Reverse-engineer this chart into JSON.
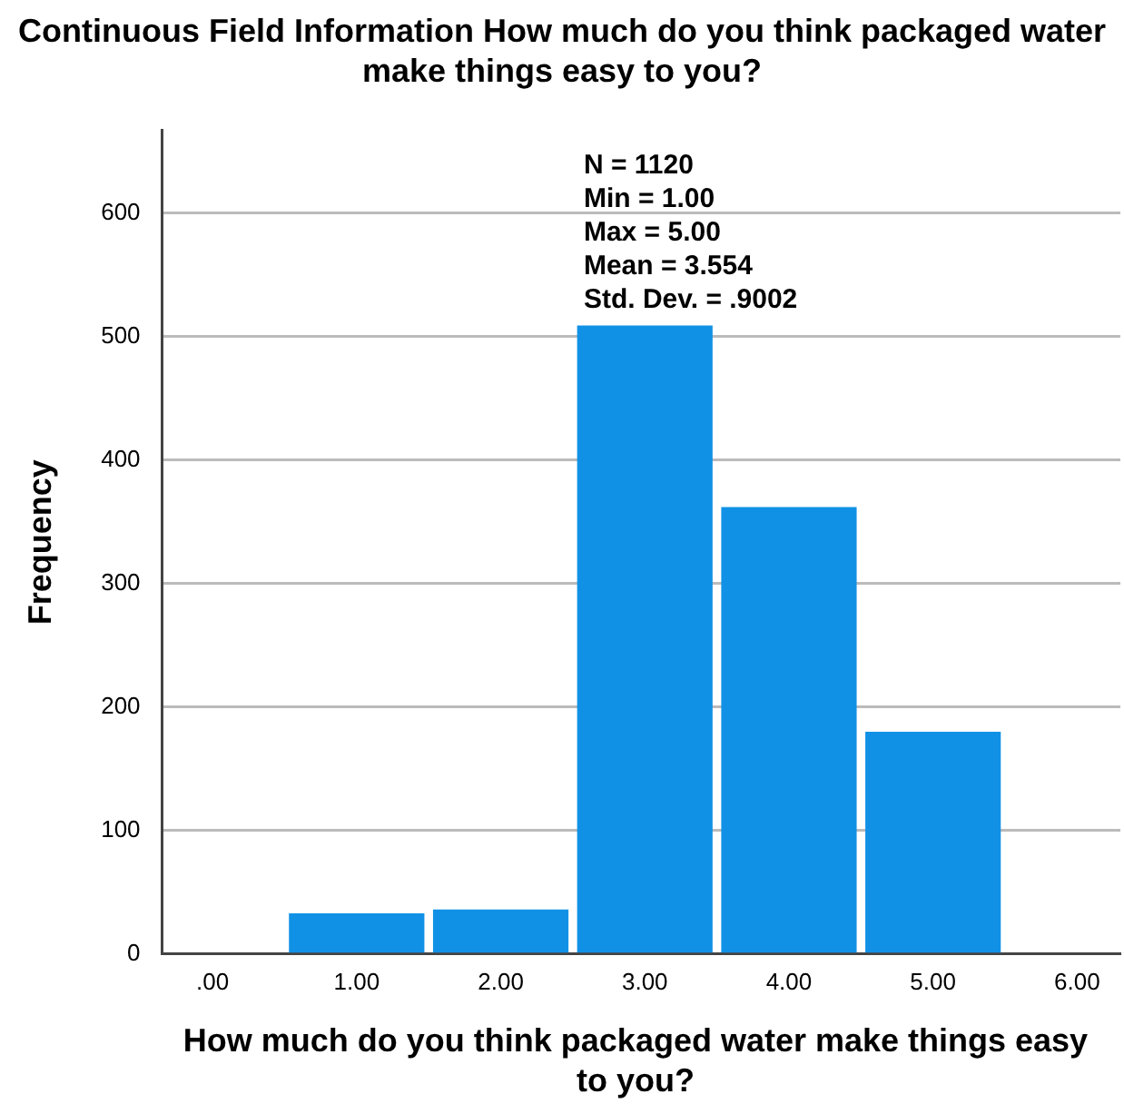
{
  "chart_data": {
    "type": "histogram",
    "title": "Continuous Field Information How much do you think packaged water make things easy to you?",
    "xlabel": "How much do you think packaged water make things easy to you?",
    "ylabel": "Frequency",
    "bins": [
      0.5,
      1.5,
      2.5,
      3.5,
      4.5,
      5.5
    ],
    "values": [
      33,
      36,
      509,
      362,
      180
    ],
    "color": "#1191e6",
    "xlim": [
      -0.35,
      6.3
    ],
    "xticks": [
      {
        "value": 0,
        "label": ".00"
      },
      {
        "value": 1,
        "label": "1.00"
      },
      {
        "value": 2,
        "label": "2.00"
      },
      {
        "value": 3,
        "label": "3.00"
      },
      {
        "value": 4,
        "label": "4.00"
      },
      {
        "value": 5,
        "label": "5.00"
      },
      {
        "value": 6,
        "label": "6.00"
      }
    ],
    "ylim": [
      0,
      667
    ],
    "yticks": [
      0,
      100,
      200,
      300,
      400,
      500,
      600
    ],
    "grid": "y",
    "legend": false,
    "annotations": [
      "N = 1120",
      "Min = 1.00",
      "Max = 5.00",
      "Mean = 3.554",
      "Std. Dev. = .9002"
    ]
  }
}
